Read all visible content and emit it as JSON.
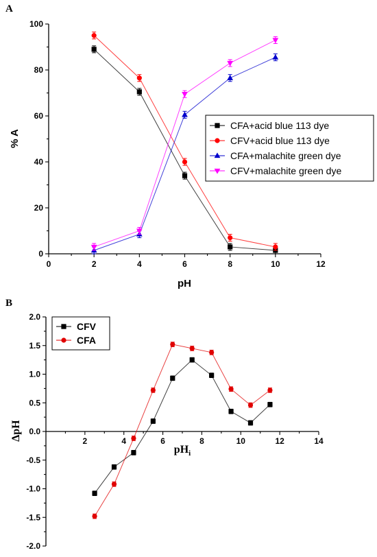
{
  "chart_data": [
    {
      "panel_label": "A",
      "type": "line",
      "xlabel": "pH",
      "ylabel": "% A",
      "xlim": [
        0,
        12
      ],
      "ylim": [
        0,
        100
      ],
      "xticks": [
        0,
        2,
        4,
        6,
        8,
        10,
        12
      ],
      "yticks": [
        0,
        20,
        40,
        60,
        80,
        100
      ],
      "x": [
        2,
        4,
        6,
        8,
        10
      ],
      "legend_position": "center-right",
      "grid": false,
      "series": [
        {
          "name": "CFA+acid blue 113 dye",
          "values": [
            89,
            70.5,
            34,
            3,
            1.5
          ],
          "errors": [
            1.5,
            1.5,
            1.5,
            1.5,
            1.5
          ],
          "color": "#000000",
          "marker": "square"
        },
        {
          "name": "CFV+acid blue 113 dye",
          "values": [
            95,
            76.5,
            40,
            7,
            3
          ],
          "errors": [
            1.5,
            1.5,
            1.5,
            1.5,
            1.5
          ],
          "color": "#ff0000",
          "marker": "circle"
        },
        {
          "name": "CFA+malachite green dye",
          "values": [
            1.5,
            8.5,
            60.5,
            76.5,
            85.5
          ],
          "errors": [
            1.5,
            1.5,
            1.5,
            1.5,
            1.5
          ],
          "color": "#0000cc",
          "marker": "triangle-up"
        },
        {
          "name": "CFV+malachite green dye",
          "values": [
            3,
            10,
            69.5,
            83,
            93
          ],
          "errors": [
            1.5,
            1.5,
            1.5,
            1.5,
            1.5
          ],
          "color": "#ff00ff",
          "marker": "triangle-down"
        }
      ]
    },
    {
      "panel_label": "B",
      "type": "line",
      "xlabel": "pH",
      "xlabel_sub": "i",
      "ylabel": "∆pH",
      "xlim": [
        0,
        14
      ],
      "ylim": [
        -2.0,
        2.0
      ],
      "xticks": [
        2,
        4,
        6,
        8,
        10,
        12,
        14
      ],
      "yticks": [
        -2.0,
        -1.5,
        -1.0,
        -0.5,
        0.0,
        0.5,
        1.0,
        1.5,
        2.0
      ],
      "ytick_labels": [
        "-2.0",
        "-1.5",
        "-1.0",
        "-0.5",
        "0.0",
        "0.5",
        "1.0",
        "1.5",
        "2.0"
      ],
      "x": [
        2.5,
        3.5,
        4.5,
        5.5,
        6.5,
        7.5,
        8.5,
        9.5,
        10.5,
        11.5
      ],
      "legend_position": "top-left",
      "grid": false,
      "series": [
        {
          "name": "CFV",
          "values": [
            -1.08,
            -0.62,
            -0.37,
            0.18,
            0.93,
            1.25,
            0.98,
            0.35,
            0.15,
            0.47
          ],
          "errors": [
            0.04,
            0.04,
            0.04,
            0.04,
            0.04,
            0.04,
            0.04,
            0.04,
            0.04,
            0.04
          ],
          "color": "#000000",
          "marker": "square"
        },
        {
          "name": "CFA",
          "values": [
            -1.48,
            -0.92,
            -0.12,
            0.72,
            1.52,
            1.45,
            1.38,
            0.74,
            0.46,
            0.72
          ],
          "errors": [
            0.04,
            0.04,
            0.04,
            0.04,
            0.04,
            0.04,
            0.04,
            0.04,
            0.04,
            0.04
          ],
          "color": "#e00000",
          "marker": "circle"
        }
      ]
    }
  ]
}
